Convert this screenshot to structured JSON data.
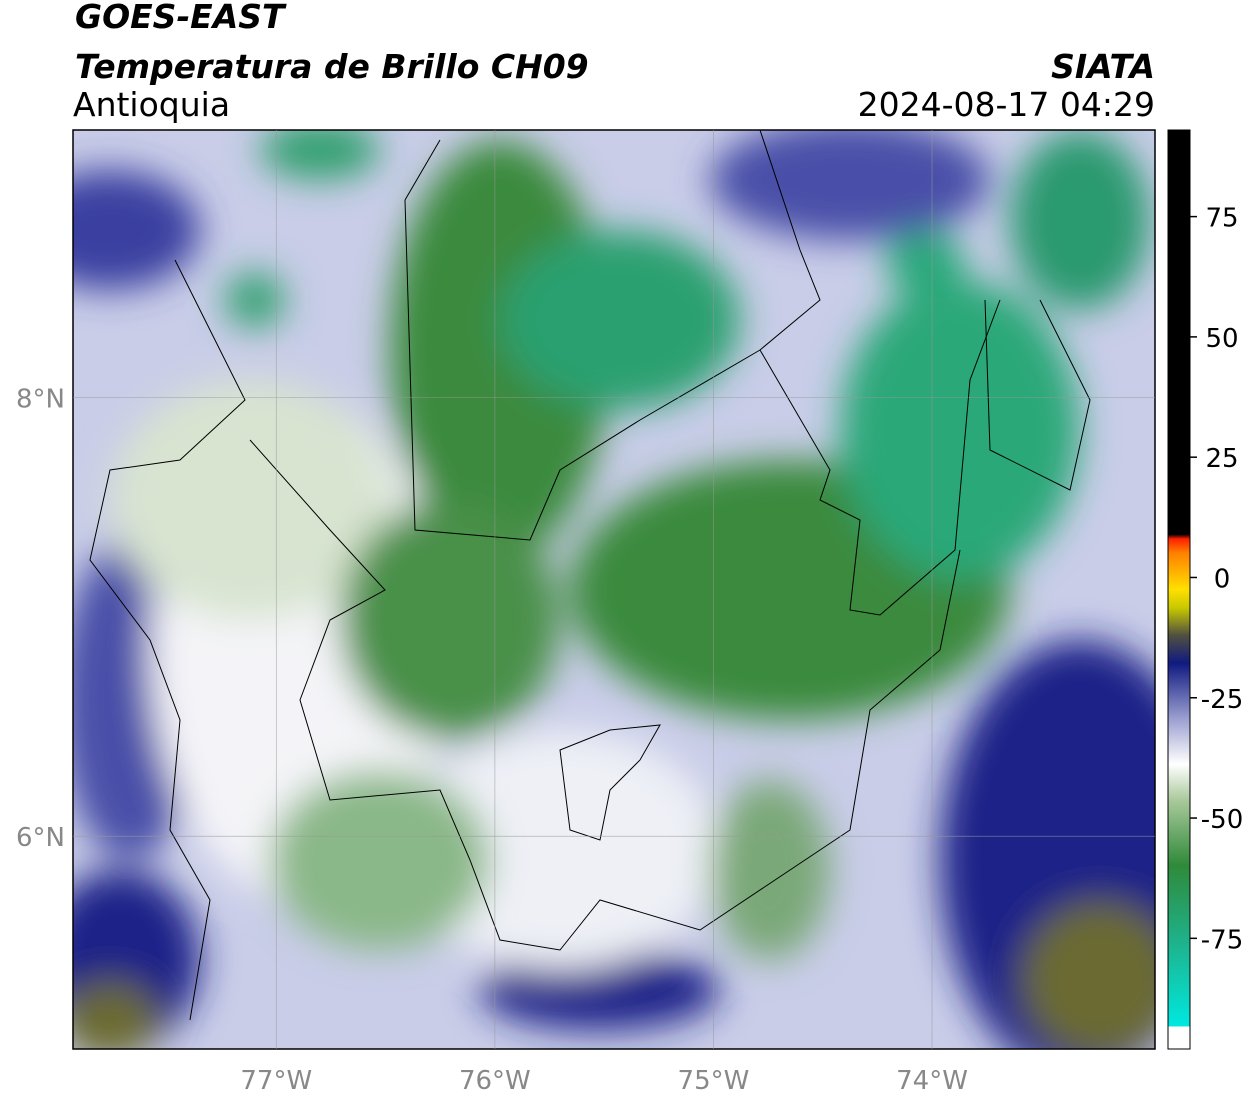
{
  "chart_data": {
    "type": "map",
    "title": "GOES-EAST",
    "subtitle": "Temperatura de Brillo CH09",
    "region": "Antioquia",
    "source": "SIATA",
    "datetime": "2024-08-17 04:29",
    "xlim": [
      -77.93,
      -72.98
    ],
    "ylim": [
      5.03,
      9.22
    ],
    "xticks": [
      {
        "value": -77,
        "label": "77°W"
      },
      {
        "value": -76,
        "label": "76°W"
      },
      {
        "value": -75,
        "label": "75°W"
      },
      {
        "value": -74,
        "label": "74°W"
      }
    ],
    "yticks": [
      {
        "value": 8,
        "label": "8°N"
      },
      {
        "value": 6,
        "label": "6°N"
      }
    ],
    "grid": true,
    "colorbar": {
      "lim": [
        -98,
        93
      ],
      "ticks": [
        75,
        50,
        25,
        0,
        -25,
        -50,
        -75
      ]
    }
  }
}
